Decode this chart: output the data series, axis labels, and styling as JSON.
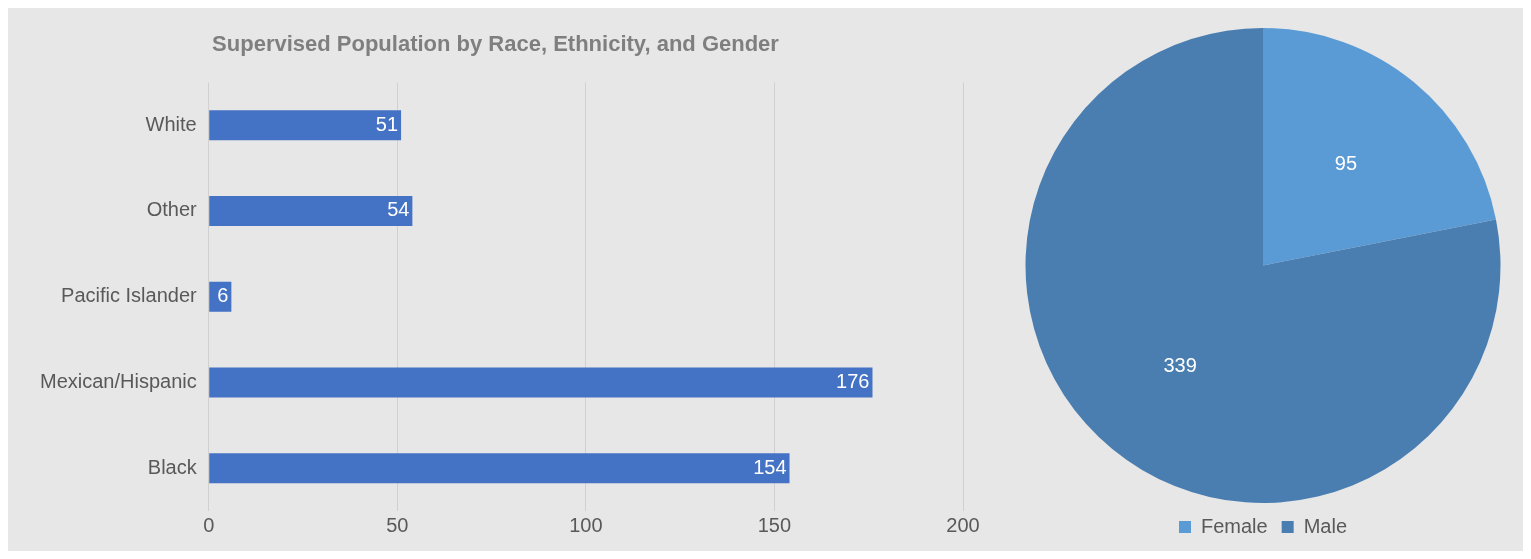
{
  "chart_data": [
    {
      "type": "bar",
      "title": "Supervised Population by Race, Ethnicity, and Gender",
      "orientation": "horizontal",
      "categories": [
        "White",
        "Other",
        "Pacific Islander",
        "Mexican/Hispanic",
        "Black"
      ],
      "values": [
        51,
        54,
        6,
        176,
        154
      ],
      "color": "#4472c4",
      "xlim": [
        0,
        200
      ],
      "xticks": [
        0,
        50,
        100,
        150,
        200
      ],
      "grid": "x",
      "data_labels": true
    },
    {
      "type": "pie",
      "categories": [
        "Female",
        "Male"
      ],
      "values": [
        95,
        339
      ],
      "colors": [
        "#5b9bd5",
        "#4a7eb0"
      ],
      "legend": "bottom",
      "data_labels": true
    }
  ]
}
